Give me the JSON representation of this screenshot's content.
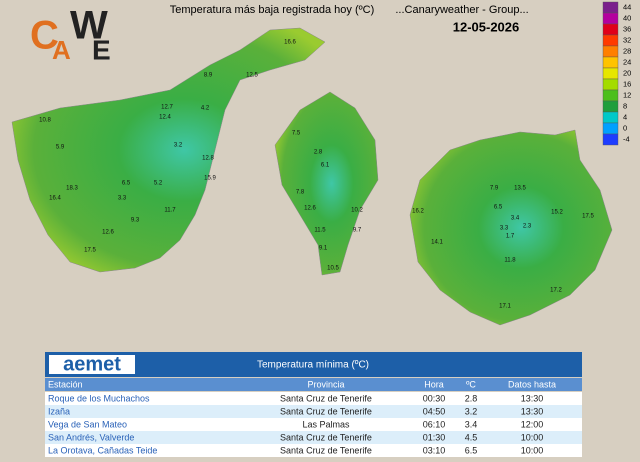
{
  "logo": [
    "C",
    "A",
    "W",
    "E"
  ],
  "header": {
    "title": "Temperatura más baja registrada hoy (ºC)",
    "site": "...Canaryweather - Group...",
    "date": "12-05-2026"
  },
  "scale": {
    "values": [
      44,
      40,
      36,
      32,
      28,
      24,
      20,
      16,
      12,
      8,
      4,
      0,
      -4
    ],
    "colors": [
      "#7a1f8c",
      "#b4009e",
      "#e0001a",
      "#ff3a00",
      "#ff7f00",
      "#ffc300",
      "#e6e600",
      "#a4dc00",
      "#4cbf1c",
      "#1f9e3c",
      "#00c8c8",
      "#00a0ff",
      "#1d3cff"
    ]
  },
  "islands": {
    "tenerife": [
      "12.7",
      "12.4",
      "4.2",
      "3.2",
      "6.5",
      "5.2",
      "3.3",
      "9.3",
      "11.7",
      "12.6",
      "17.5",
      "18.3",
      "16.4",
      "5.9",
      "10.8",
      "8.9",
      "12.5",
      "16.6",
      "12.8",
      "15.9"
    ],
    "center": [
      "2.8",
      "7.5",
      "6.1",
      "7.8",
      "12.6",
      "11.5",
      "9.1",
      "10.5",
      "10.2",
      "9.7"
    ],
    "gran_canaria": [
      "3.4",
      "2.3",
      "1.7",
      "3.3",
      "6.5",
      "14.1",
      "15.2",
      "17.5",
      "17.2",
      "17.1",
      "16.2",
      "11.8",
      "13.5",
      "7.9"
    ]
  },
  "table": {
    "brand": "aemet",
    "title": "Temperatura mínima (ºC)",
    "columns": [
      "Estación",
      "Provincia",
      "Hora",
      "ºC",
      "Datos hasta"
    ],
    "rows": [
      [
        "Roque de los Muchachos",
        "Santa Cruz de Tenerife",
        "00:30",
        "2.8",
        "13:30"
      ],
      [
        "Izaña",
        "Santa Cruz de Tenerife",
        "04:50",
        "3.2",
        "13:30"
      ],
      [
        "Vega de San Mateo",
        "Las Palmas",
        "06:10",
        "3.4",
        "12:00"
      ],
      [
        "San Andrés, Valverde",
        "Santa Cruz de Tenerife",
        "01:30",
        "4.5",
        "10:00"
      ],
      [
        "La Orotava, Cañadas Teide",
        "Santa Cruz de Tenerife",
        "03:10",
        "6.5",
        "10:00"
      ]
    ]
  }
}
